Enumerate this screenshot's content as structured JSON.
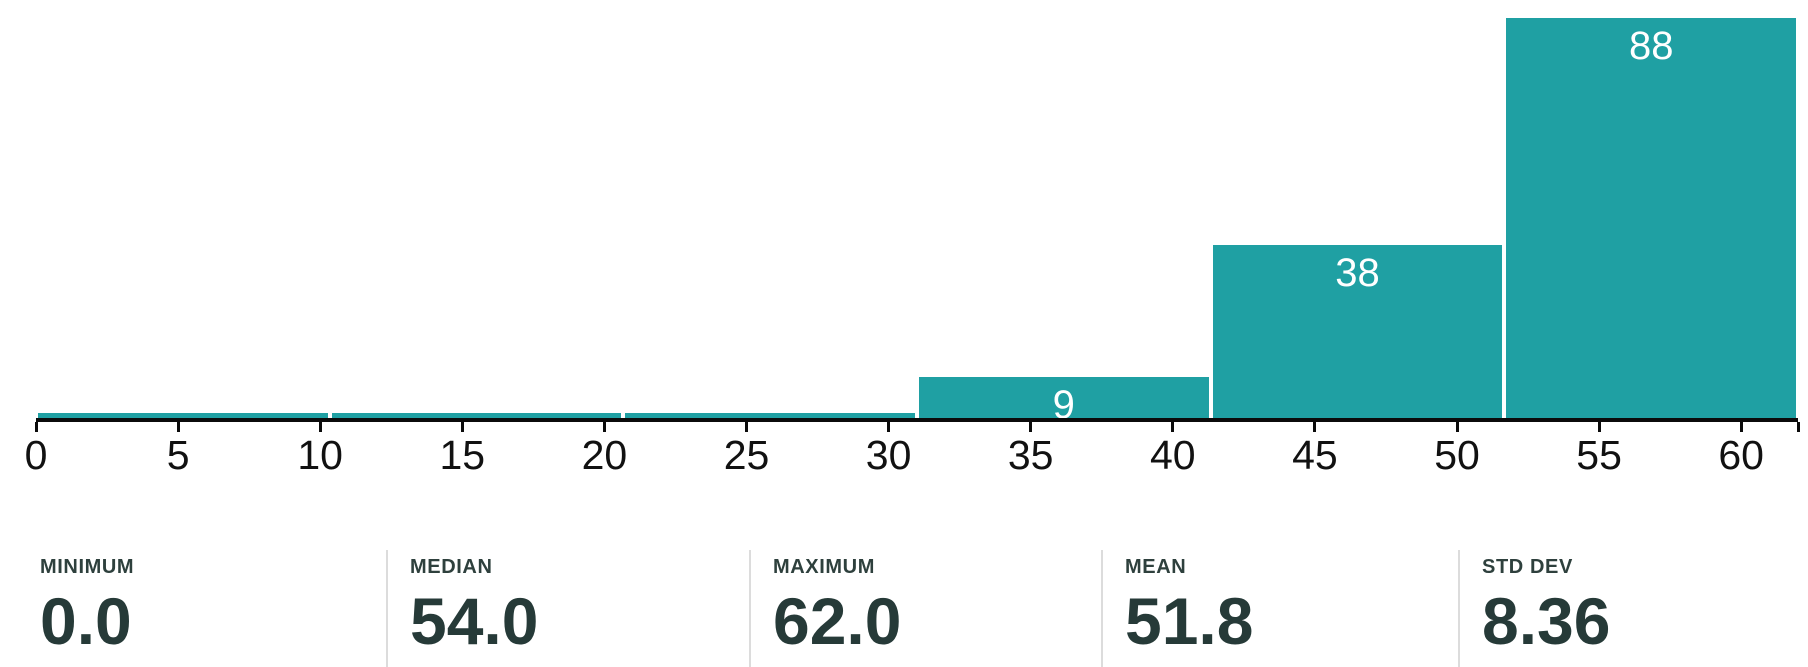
{
  "chart_data": {
    "type": "histogram",
    "title": "",
    "xlabel": "",
    "ylabel": "",
    "xlim": [
      0,
      62
    ],
    "grid": false,
    "legend": false,
    "bins": [
      {
        "range": [
          0,
          10.33
        ],
        "count": 1,
        "label": ""
      },
      {
        "range": [
          10.33,
          20.67
        ],
        "count": 1,
        "label": ""
      },
      {
        "range": [
          20.67,
          31
        ],
        "count": 1,
        "label": ""
      },
      {
        "range": [
          31,
          41.33
        ],
        "count": 9,
        "label": "9"
      },
      {
        "range": [
          41.33,
          51.67
        ],
        "count": 38,
        "label": "38"
      },
      {
        "range": [
          51.67,
          62
        ],
        "count": 88,
        "label": "88"
      }
    ],
    "x_ticks": [
      {
        "v": 0,
        "label": "0"
      },
      {
        "v": 5,
        "label": "5"
      },
      {
        "v": 10,
        "label": "10"
      },
      {
        "v": 15,
        "label": "15"
      },
      {
        "v": 20,
        "label": "20"
      },
      {
        "v": 25,
        "label": "25"
      },
      {
        "v": 30,
        "label": "30"
      },
      {
        "v": 35,
        "label": "35"
      },
      {
        "v": 40,
        "label": "40"
      },
      {
        "v": 45,
        "label": "45"
      },
      {
        "v": 50,
        "label": "50"
      },
      {
        "v": 55,
        "label": "55"
      },
      {
        "v": 60,
        "label": "60"
      },
      {
        "v": 62,
        "label": ""
      }
    ],
    "colors": {
      "bar": "#1FA0A3",
      "bar_label": "#FFFFFF",
      "axis": "#0B0B0B",
      "tick_label": "#111111"
    }
  },
  "stats": [
    {
      "label": "MINIMUM",
      "value": "0.0"
    },
    {
      "label": "MEDIAN",
      "value": "54.0"
    },
    {
      "label": "MAXIMUM",
      "value": "62.0"
    },
    {
      "label": "MEAN",
      "value": "51.8"
    },
    {
      "label": "STD DEV",
      "value": "8.36"
    }
  ],
  "stats_colors": {
    "label": "#2E403D",
    "value": "#263A38",
    "divider": "#DCDCDC"
  }
}
